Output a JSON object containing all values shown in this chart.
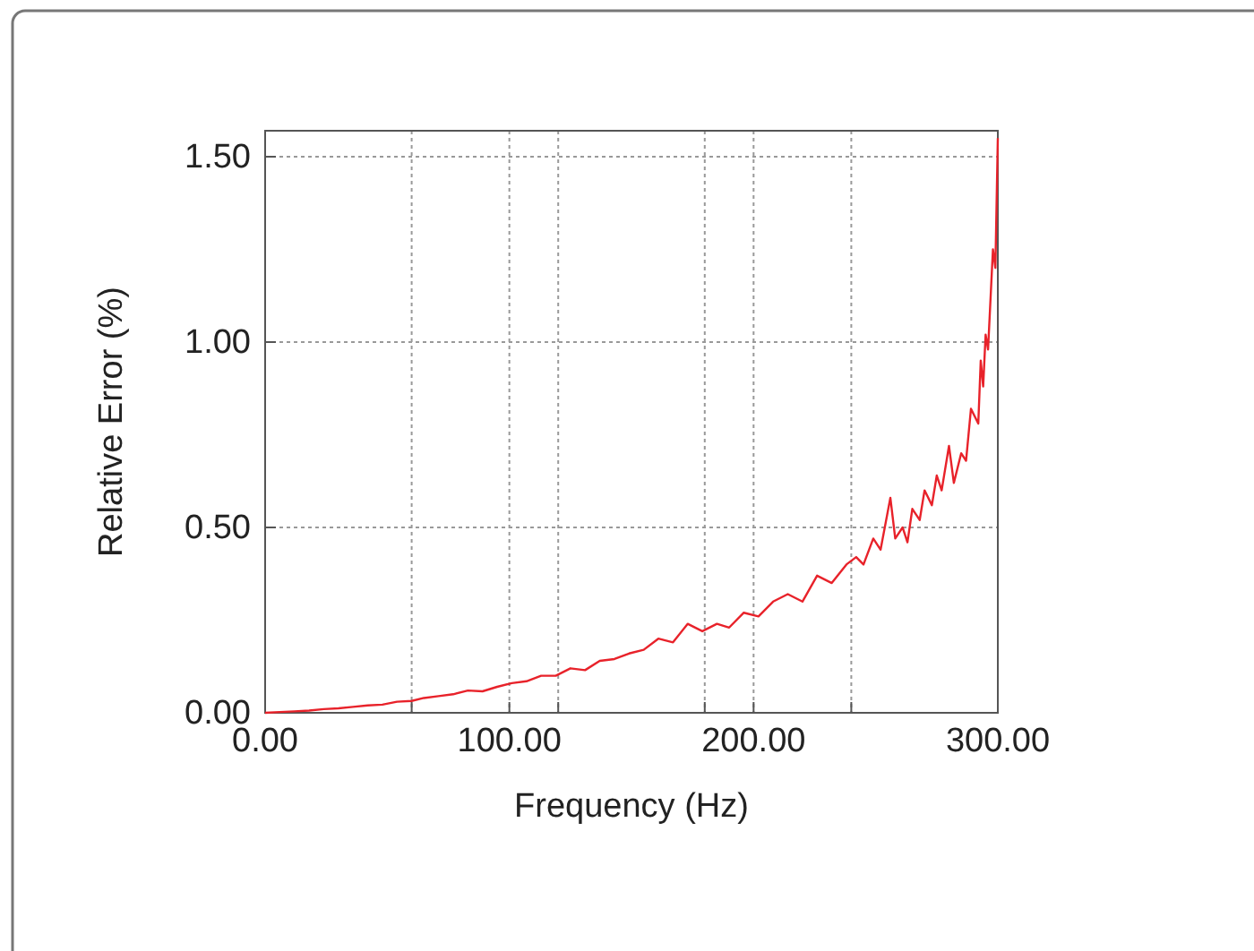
{
  "chart_data": {
    "type": "line",
    "xlabel": "Frequency (Hz)",
    "ylabel": "Relative Error (%)",
    "xlim": [
      0,
      300
    ],
    "ylim": [
      0,
      1.57
    ],
    "xticks": [
      {
        "value": 0,
        "label": "0.00"
      },
      {
        "value": 60,
        "label": null
      },
      {
        "value": 100,
        "label": "100.00"
      },
      {
        "value": 120,
        "label": null
      },
      {
        "value": 180,
        "label": null
      },
      {
        "value": 200,
        "label": "200.00"
      },
      {
        "value": 240,
        "label": null
      },
      {
        "value": 300,
        "label": "300.00"
      }
    ],
    "yticks": [
      {
        "value": 0,
        "label": "0.00"
      },
      {
        "value": 0.5,
        "label": "0.50"
      },
      {
        "value": 1,
        "label": "1.00"
      },
      {
        "value": 1.5,
        "label": "1.50"
      }
    ],
    "grid": true,
    "marker": "none",
    "line_style": "solid",
    "series": [
      {
        "color": "#e8222a",
        "x": [
          0,
          6,
          12,
          18,
          24,
          30,
          36,
          42,
          48,
          54,
          60,
          65,
          71,
          77,
          83,
          89,
          95,
          101,
          107,
          113,
          119,
          125,
          131,
          137,
          143,
          149,
          155,
          161,
          167,
          173,
          179,
          185,
          190,
          196,
          202,
          208,
          214,
          220,
          226,
          232,
          238,
          242,
          245,
          249,
          252,
          256,
          258,
          261,
          263,
          265,
          268,
          270,
          273,
          275,
          277,
          280,
          282,
          285,
          287,
          289,
          292,
          293,
          294,
          295,
          296,
          298,
          299,
          300
        ],
        "values": [
          0,
          0.002,
          0.004,
          0.006,
          0.01,
          0.012,
          0.016,
          0.02,
          0.022,
          0.03,
          0.032,
          0.04,
          0.045,
          0.05,
          0.06,
          0.058,
          0.07,
          0.08,
          0.085,
          0.1,
          0.1,
          0.12,
          0.115,
          0.14,
          0.145,
          0.16,
          0.17,
          0.2,
          0.19,
          0.24,
          0.22,
          0.24,
          0.23,
          0.27,
          0.26,
          0.3,
          0.32,
          0.3,
          0.37,
          0.35,
          0.4,
          0.42,
          0.4,
          0.47,
          0.44,
          0.58,
          0.47,
          0.5,
          0.46,
          0.55,
          0.52,
          0.6,
          0.56,
          0.64,
          0.6,
          0.72,
          0.62,
          0.7,
          0.68,
          0.82,
          0.78,
          0.95,
          0.88,
          1.02,
          0.98,
          1.25,
          1.2,
          1.55
        ]
      }
    ]
  }
}
